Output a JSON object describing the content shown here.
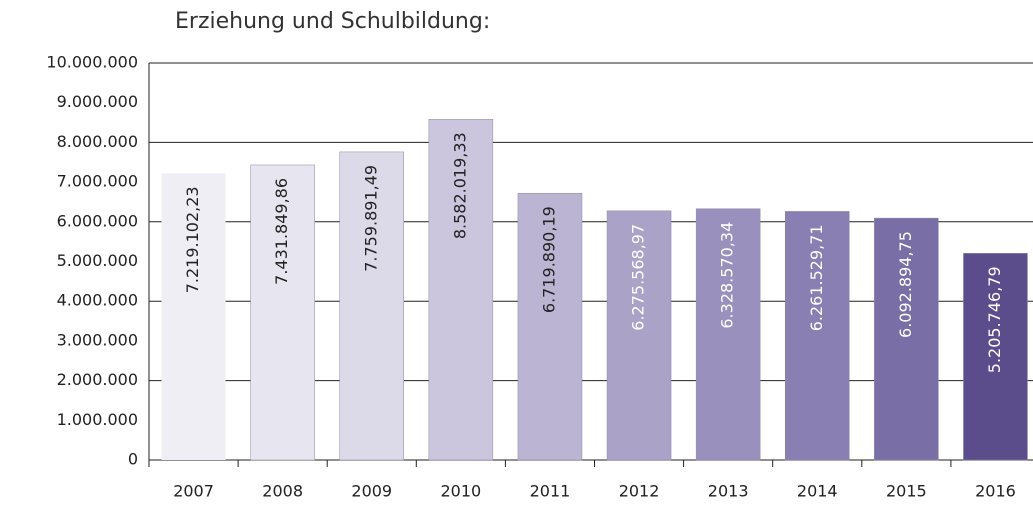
{
  "chart_data": {
    "type": "bar",
    "title": "Erziehung und Schulbildung:",
    "categories": [
      "2007",
      "2008",
      "2009",
      "2010",
      "2011",
      "2012",
      "2013",
      "2014",
      "2015",
      "2016"
    ],
    "values": [
      7219102.23,
      7431849.86,
      7759891.49,
      8582019.33,
      6719890.19,
      6275568.97,
      6328570.34,
      6261529.71,
      6092894.75,
      5205746.79
    ],
    "value_labels": [
      "7.219.102,23",
      "7.431.849,86",
      "7.759.891,49",
      "8.582.019,33",
      "6.719.890,19",
      "6.275.568,97",
      "6.328.570,34",
      "6.261.529,71",
      "6.092.894,75",
      "5.205.746,79"
    ],
    "colors": [
      "#efeef4",
      "#e7e5ef",
      "#dcd9e8",
      "#cbc6dd",
      "#bbb4d3",
      "#aaa2c7",
      "#9a90bd",
      "#8a7fb2",
      "#7a6ea6",
      "#5b4c8c"
    ],
    "value_label_colors": [
      "#222",
      "#222",
      "#222",
      "#222",
      "#222",
      "#fff",
      "#fff",
      "#fff",
      "#fff",
      "#fff"
    ],
    "ylim": [
      0,
      10000000
    ],
    "yticks": [
      {
        "value": 0,
        "label": "0"
      },
      {
        "value": 1000000,
        "label": "1.000.000"
      },
      {
        "value": 2000000,
        "label": "2.000.000"
      },
      {
        "value": 3000000,
        "label": "3.000.000"
      },
      {
        "value": 4000000,
        "label": "4.000.000"
      },
      {
        "value": 5000000,
        "label": "5.000.000"
      },
      {
        "value": 6000000,
        "label": "6.000.000"
      },
      {
        "value": 7000000,
        "label": "7.000.000"
      },
      {
        "value": 8000000,
        "label": "8.000.000"
      },
      {
        "value": 9000000,
        "label": "9.000.000"
      },
      {
        "value": 10000000,
        "label": "10.000.000"
      }
    ],
    "ygrid": [
      2000000,
      4000000,
      6000000,
      8000000,
      10000000
    ]
  }
}
